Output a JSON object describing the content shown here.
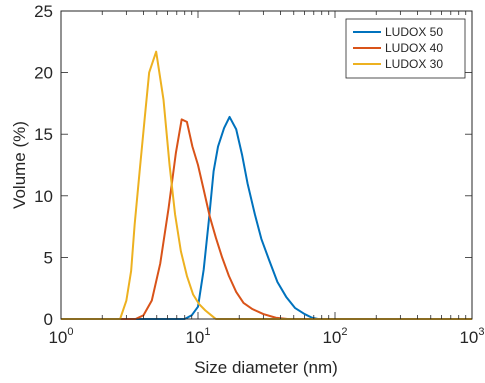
{
  "chart_data": {
    "type": "line",
    "title": "",
    "xlabel": "Size diameter (nm)",
    "ylabel": "Volume (%)",
    "x_scale": "log",
    "xlim": [
      1,
      1000
    ],
    "ylim": [
      0,
      25
    ],
    "x_ticks": [
      {
        "value": 1,
        "base": "10",
        "exp": "0"
      },
      {
        "value": 10,
        "base": "10",
        "exp": "1"
      },
      {
        "value": 100,
        "base": "10",
        "exp": "2"
      },
      {
        "value": 1000,
        "base": "10",
        "exp": "3"
      }
    ],
    "y_ticks": [
      0,
      5,
      10,
      15,
      20,
      25
    ],
    "y_tick_labels": [
      "0",
      "5",
      "10",
      "15",
      "20",
      "25"
    ],
    "grid": false,
    "legend_position": "top-right",
    "series": [
      {
        "name": "LUDOX 50",
        "color": "#0072BD",
        "points": [
          [
            1,
            0
          ],
          [
            8.0,
            0
          ],
          [
            9.0,
            0.3
          ],
          [
            10.0,
            1.0
          ],
          [
            11.0,
            4.0
          ],
          [
            12.0,
            8.0
          ],
          [
            13.0,
            12.0
          ],
          [
            14.0,
            14.0
          ],
          [
            15.5,
            15.5
          ],
          [
            17.0,
            16.4
          ],
          [
            19.0,
            15.4
          ],
          [
            21.0,
            13.3
          ],
          [
            23.0,
            11.0
          ],
          [
            26.0,
            8.5
          ],
          [
            29.0,
            6.5
          ],
          [
            33.0,
            4.8
          ],
          [
            38.0,
            3.0
          ],
          [
            44.0,
            1.8
          ],
          [
            51.0,
            0.9
          ],
          [
            60.0,
            0.4
          ],
          [
            68.0,
            0.1
          ],
          [
            75.0,
            0
          ],
          [
            1000,
            0
          ]
        ]
      },
      {
        "name": "LUDOX 40",
        "color": "#D95319",
        "points": [
          [
            1,
            0
          ],
          [
            3.5,
            0
          ],
          [
            4.0,
            0.3
          ],
          [
            4.6,
            1.5
          ],
          [
            5.3,
            4.5
          ],
          [
            6.1,
            9.0
          ],
          [
            6.9,
            13.5
          ],
          [
            7.6,
            16.2
          ],
          [
            8.3,
            16.0
          ],
          [
            9.1,
            14.0
          ],
          [
            10.0,
            12.5
          ],
          [
            11.0,
            10.5
          ],
          [
            12.2,
            8.3
          ],
          [
            13.5,
            6.6
          ],
          [
            15.0,
            5.0
          ],
          [
            16.8,
            3.5
          ],
          [
            19.0,
            2.2
          ],
          [
            21.5,
            1.3
          ],
          [
            25.0,
            0.8
          ],
          [
            30.0,
            0.4
          ],
          [
            37.0,
            0.1
          ],
          [
            45.0,
            0
          ],
          [
            1000,
            0
          ]
        ]
      },
      {
        "name": "LUDOX 30",
        "color": "#EDB120",
        "points": [
          [
            1,
            0
          ],
          [
            2.7,
            0
          ],
          [
            3.0,
            1.5
          ],
          [
            3.25,
            3.9
          ],
          [
            3.45,
            7.7
          ],
          [
            3.75,
            12.0
          ],
          [
            4.1,
            16.5
          ],
          [
            4.4,
            20.0
          ],
          [
            4.95,
            21.7
          ],
          [
            5.6,
            17.8
          ],
          [
            6.2,
            12.5
          ],
          [
            6.8,
            8.5
          ],
          [
            7.5,
            5.5
          ],
          [
            8.3,
            3.5
          ],
          [
            9.2,
            2.0
          ],
          [
            10.2,
            1.2
          ],
          [
            11.3,
            0.7
          ],
          [
            12.5,
            0.3
          ],
          [
            13.5,
            0
          ],
          [
            1000,
            0
          ]
        ]
      }
    ]
  }
}
